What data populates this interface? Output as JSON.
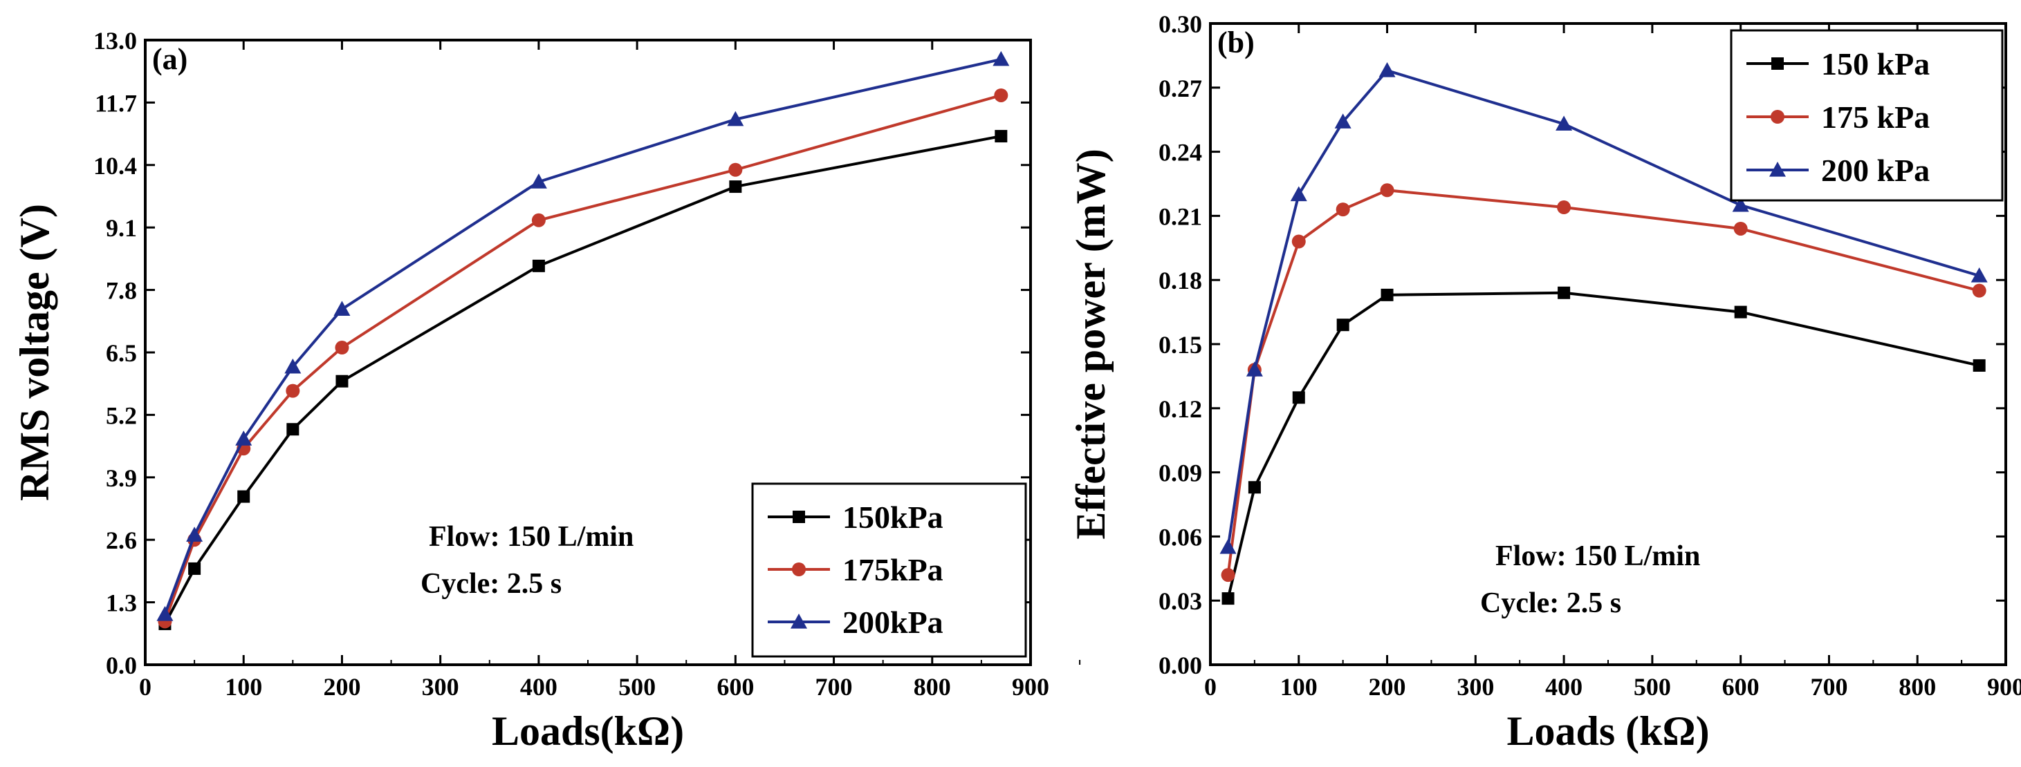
{
  "chart_data": [
    {
      "type": "line",
      "panel_label": "(a)",
      "xlabel": "Loads(kΩ)",
      "ylabel": "RMS voltage (V)",
      "xlim": [
        0,
        900
      ],
      "ylim": [
        0,
        13
      ],
      "xticks": [
        0,
        100,
        200,
        300,
        400,
        500,
        600,
        700,
        800,
        900
      ],
      "yticks": [
        "0.0",
        "1.3",
        "2.6",
        "3.9",
        "5.2",
        "6.5",
        "7.8",
        "9.1",
        "10.4",
        "11.7",
        "13.0"
      ],
      "x": [
        20,
        50,
        100,
        150,
        200,
        400,
        600,
        870
      ],
      "series": [
        {
          "name": "150kPa",
          "marker": "square",
          "color": "#000000",
          "values": [
            0.85,
            2.0,
            3.5,
            4.9,
            5.9,
            8.3,
            9.95,
            11.0
          ]
        },
        {
          "name": "175kPa",
          "marker": "circle",
          "color": "#c0392b",
          "values": [
            0.9,
            2.6,
            4.5,
            5.7,
            6.6,
            9.25,
            10.3,
            11.85
          ]
        },
        {
          "name": "200kPa",
          "marker": "triangle",
          "color": "#1f2f8f",
          "values": [
            1.05,
            2.7,
            4.7,
            6.2,
            7.4,
            10.05,
            11.35,
            12.6
          ]
        }
      ],
      "legend_position": "bottom-right",
      "annotations": [
        "Flow: 150 L/min",
        "Cycle: 2.5 s"
      ]
    },
    {
      "type": "line",
      "panel_label": "(b)",
      "xlabel": "Loads (kΩ)",
      "ylabel": "Effective power (mW)",
      "xlim": [
        0,
        900
      ],
      "ylim": [
        0,
        0.3
      ],
      "xticks": [
        0,
        100,
        200,
        300,
        400,
        500,
        600,
        700,
        800,
        900
      ],
      "yticks": [
        "0.00",
        "0.03",
        "0.06",
        "0.09",
        "0.12",
        "0.15",
        "0.18",
        "0.21",
        "0.24",
        "0.27",
        "0.30"
      ],
      "x": [
        20,
        50,
        100,
        150,
        200,
        400,
        600,
        870
      ],
      "series": [
        {
          "name": "150 kPa",
          "marker": "square",
          "color": "#000000",
          "values": [
            0.031,
            0.083,
            0.125,
            0.159,
            0.173,
            0.174,
            0.165,
            0.14
          ]
        },
        {
          "name": "175 kPa",
          "marker": "circle",
          "color": "#c0392b",
          "values": [
            0.042,
            0.138,
            0.198,
            0.213,
            0.222,
            0.214,
            0.204,
            0.175
          ]
        },
        {
          "name": "200 kPa",
          "marker": "triangle",
          "color": "#1f2f8f",
          "values": [
            0.055,
            0.138,
            0.22,
            0.254,
            0.278,
            0.253,
            0.215,
            0.182
          ]
        }
      ],
      "legend_position": "top-right",
      "annotations": [
        "Flow: 150 L/min",
        "Cycle: 2.5 s"
      ]
    }
  ]
}
